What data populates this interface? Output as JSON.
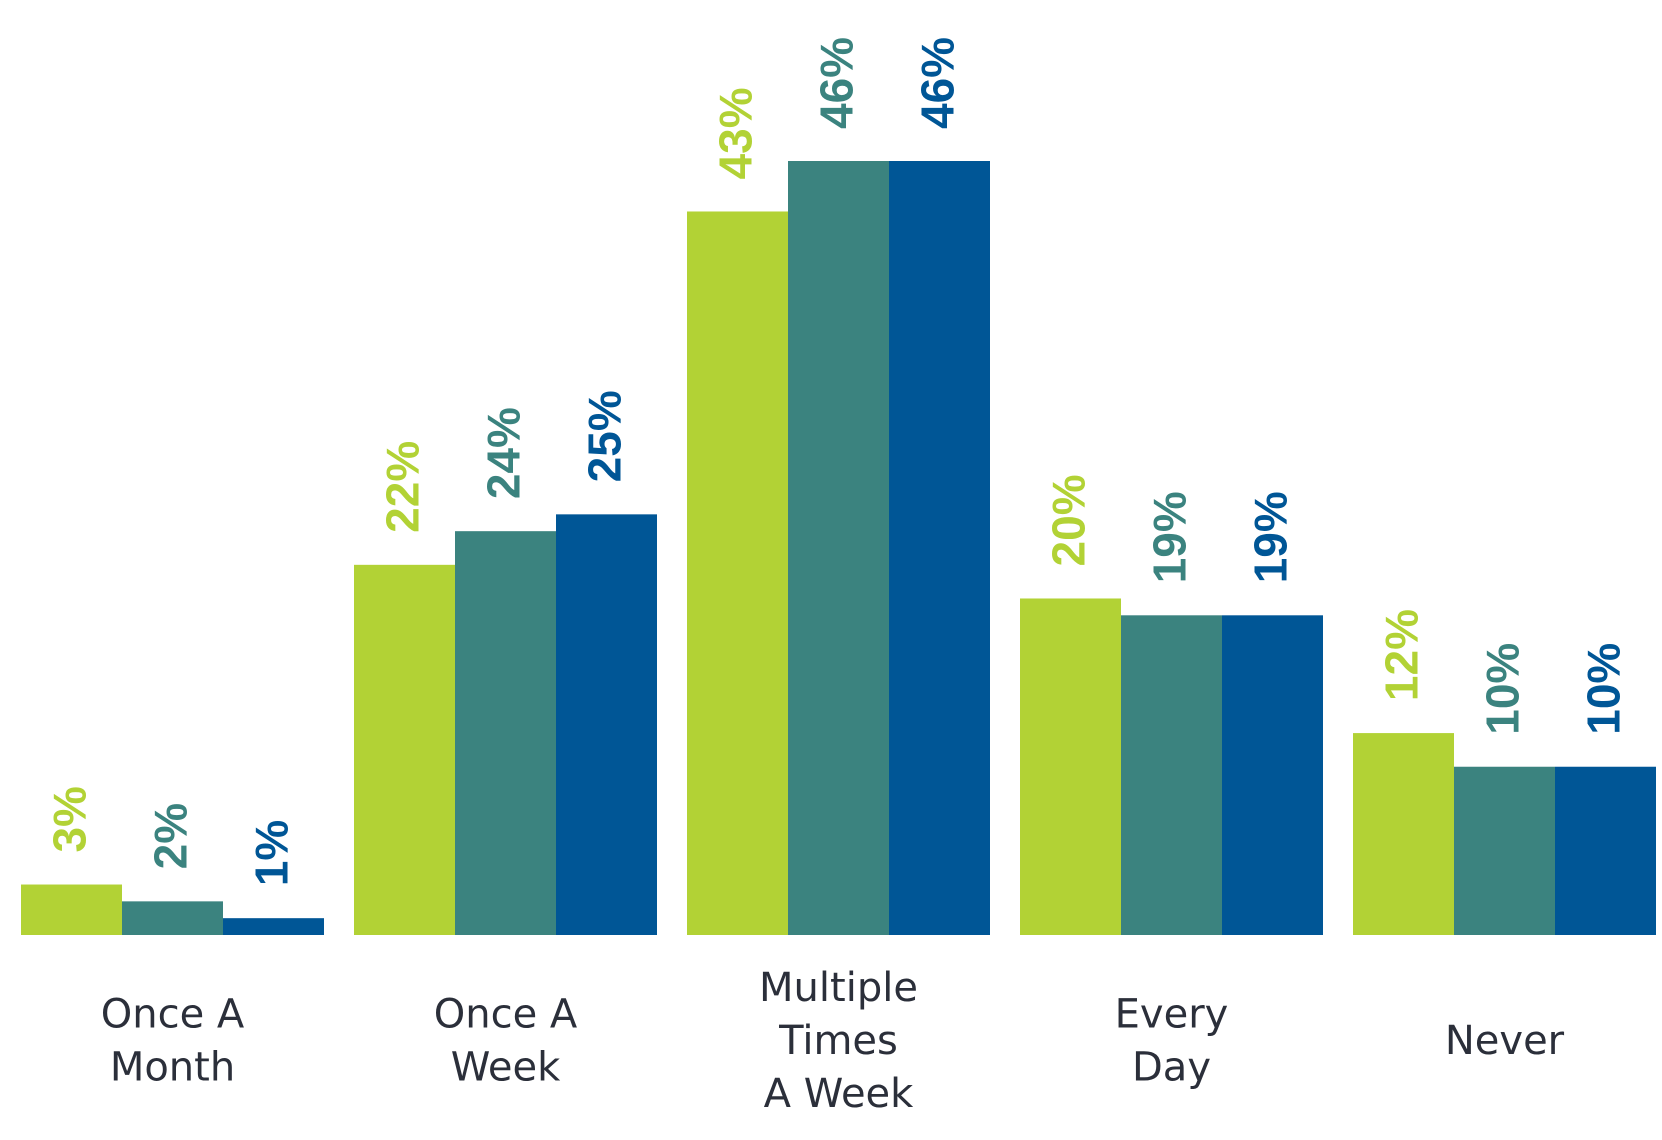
{
  "chart_data": {
    "type": "bar",
    "categories": [
      [
        "Once A",
        "Month"
      ],
      [
        "Once A",
        "Week"
      ],
      [
        "Multiple",
        "Times",
        "A Week"
      ],
      [
        "Every",
        "Day"
      ],
      [
        "Never"
      ]
    ],
    "series": [
      {
        "color": "#b2d235",
        "values": [
          3,
          22,
          43,
          20,
          12
        ],
        "labels": [
          "3%",
          "22%",
          "43%",
          "20%",
          "12%"
        ]
      },
      {
        "color": "#3b837f",
        "values": [
          2,
          24,
          46,
          19,
          10
        ],
        "labels": [
          "2%",
          "24%",
          "46%",
          "19%",
          "10%"
        ]
      },
      {
        "color": "#005696",
        "values": [
          1,
          25,
          46,
          19,
          10
        ],
        "labels": [
          "1%",
          "25%",
          "46%",
          "19%",
          "10%"
        ]
      }
    ],
    "ylim": [
      0,
      46
    ],
    "grid": false,
    "legend": "none",
    "title": "",
    "xlabel": "",
    "ylabel": ""
  }
}
